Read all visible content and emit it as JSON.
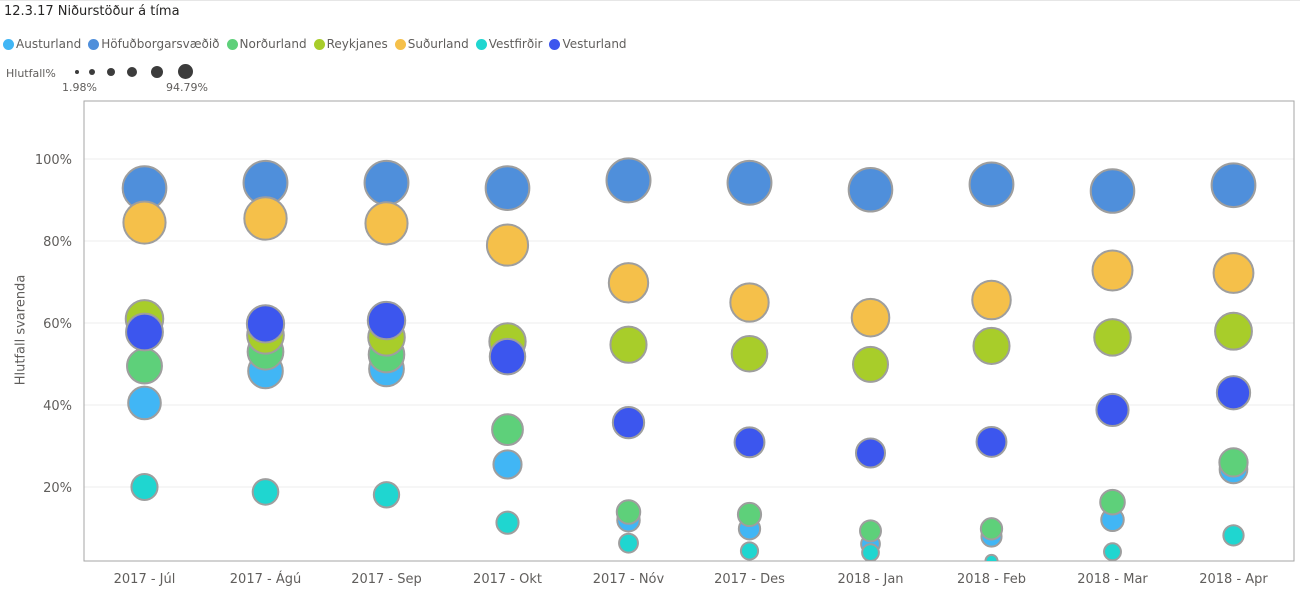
{
  "page_title": "12.3.17 Niðurstöður á tíma",
  "colors": {
    "Austurland": "#41b6f5",
    "Höfuðborgarsvæðið": "#4f8fdb",
    "Norðurland": "#5ed07a",
    "Reykjanes": "#a8cd2a",
    "Suðurland": "#f5c04a",
    "Vestfirðir": "#1fd6d0",
    "Vesturland": "#3c56ee"
  },
  "chart_data": {
    "type": "scatter",
    "title": "12.3.17 Niðurstöður á tíma",
    "ylabel": "Hlutfall svarenda",
    "xlabel": "",
    "ylim": [
      0,
      110
    ],
    "yticks": [
      20,
      40,
      60,
      80,
      100
    ],
    "ytick_labels": [
      "20%",
      "40%",
      "60%",
      "80%",
      "100%"
    ],
    "grid": true,
    "legend_position": "top-left",
    "size_legend": {
      "title": "Hlutfall%",
      "min_label": "1.98%",
      "max_label": "94.79%",
      "min": 1.98,
      "max": 94.79
    },
    "categories": [
      "2017 - Júl",
      "2017 - Ágú",
      "2017 - Sep",
      "2017 - Okt",
      "2017 - Nóv",
      "2017 - Des",
      "2018 - Jan",
      "2018 - Feb",
      "2018 - Mar",
      "2018 - Apr"
    ],
    "series": [
      {
        "name": "Austurland",
        "values": [
          40.5,
          48.3,
          48.8,
          25.5,
          11.9,
          9.8,
          6.1,
          7.9,
          12.0,
          24.3
        ]
      },
      {
        "name": "Höfuðborgarsvæðið",
        "values": [
          92.9,
          94.2,
          94.2,
          92.9,
          94.79,
          94.2,
          92.5,
          93.8,
          92.2,
          93.6
        ]
      },
      {
        "name": "Norðurland",
        "values": [
          49.5,
          53.0,
          52.3,
          34.0,
          13.9,
          13.3,
          9.3,
          9.8,
          16.3,
          26.0
        ]
      },
      {
        "name": "Reykjanes",
        "values": [
          61.0,
          57.0,
          56.5,
          55.5,
          54.7,
          52.5,
          49.9,
          54.4,
          56.5,
          58.0
        ]
      },
      {
        "name": "Suðurland",
        "values": [
          84.5,
          85.5,
          84.3,
          79.0,
          69.8,
          65.0,
          61.3,
          65.6,
          72.8,
          72.2
        ]
      },
      {
        "name": "Vestfirðir",
        "values": [
          20.0,
          18.8,
          18.1,
          11.3,
          6.3,
          4.4,
          4.0,
          1.98,
          4.2,
          8.2
        ]
      },
      {
        "name": "Vesturland",
        "values": [
          57.8,
          59.8,
          60.6,
          51.8,
          35.7,
          30.9,
          28.3,
          31.0,
          38.8,
          43.0
        ]
      }
    ]
  }
}
